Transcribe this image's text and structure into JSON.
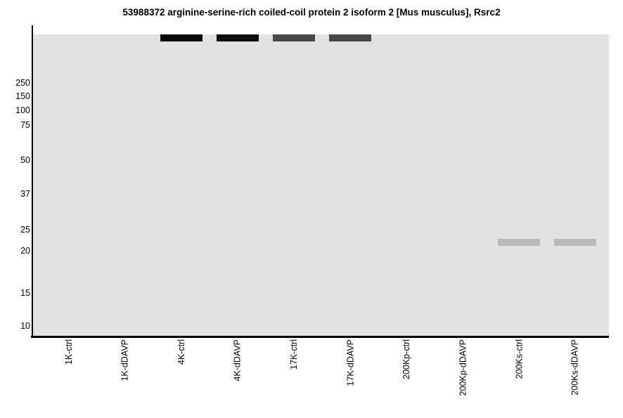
{
  "title": "53988372 arginine-serine-rich coiled-coil protein 2 isoform 2 [Mus musculus], Rsrc2",
  "chart_data": {
    "type": "heatmap",
    "subtype": "virtual-western-blot-gel",
    "title": "53988372 arginine-serine-rich coiled-coil protein 2 isoform 2 [Mus musculus], Rsrc2",
    "xlabel": "",
    "ylabel": "",
    "grid": false,
    "legend_position": "none",
    "plot_background": "#e2e2e2",
    "axis_color": "#000000",
    "y_axis": {
      "unit": "kDa molecular weight",
      "scale": "nonlinear gel migration",
      "ticks": [
        250,
        150,
        100,
        75,
        50,
        37,
        25,
        20,
        15,
        10
      ]
    },
    "lanes": [
      "1K-ctrl",
      "1K-dDAVP",
      "4K-ctrl",
      "4K-dDAVP",
      "17K-ctrl",
      "17K-dDAVP",
      "200Kp-ctrl",
      "200Kp-dDAVP",
      "200Ks-ctrl",
      "200Ks-dDAVP"
    ],
    "bands": [
      {
        "lane": "4K-ctrl",
        "mw_kda": ">250",
        "color": "#0b0b0b"
      },
      {
        "lane": "4K-dDAVP",
        "mw_kda": ">250",
        "color": "#0d0d0d"
      },
      {
        "lane": "17K-ctrl",
        "mw_kda": ">250",
        "color": "#474747"
      },
      {
        "lane": "17K-dDAVP",
        "mw_kda": ">250",
        "color": "#484848"
      },
      {
        "lane": "200Ks-ctrl",
        "mw_kda": 22,
        "color": "#b9b9b9"
      },
      {
        "lane": "200Ks-dDAVP",
        "mw_kda": 22,
        "color": "#bababa"
      }
    ]
  }
}
